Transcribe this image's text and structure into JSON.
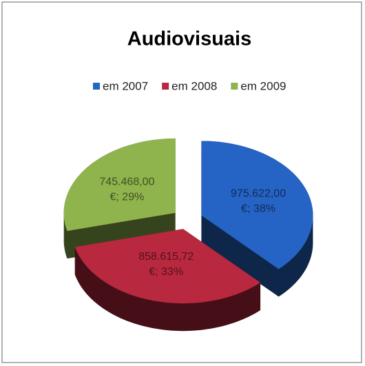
{
  "chart_data": {
    "type": "pie",
    "title": "Audiovisuais",
    "categories": [
      "em 2007",
      "em 2008",
      "em 2009"
    ],
    "values": [
      975622.0,
      858615.72,
      745468.0
    ],
    "value_labels": [
      "975.622,00 €; 38%",
      "858.615,72 €; 33%",
      "745.468,00 €; 29%"
    ],
    "colors": [
      "#2563c4",
      "#b8283f",
      "#8fb34d"
    ],
    "legend": "top"
  }
}
